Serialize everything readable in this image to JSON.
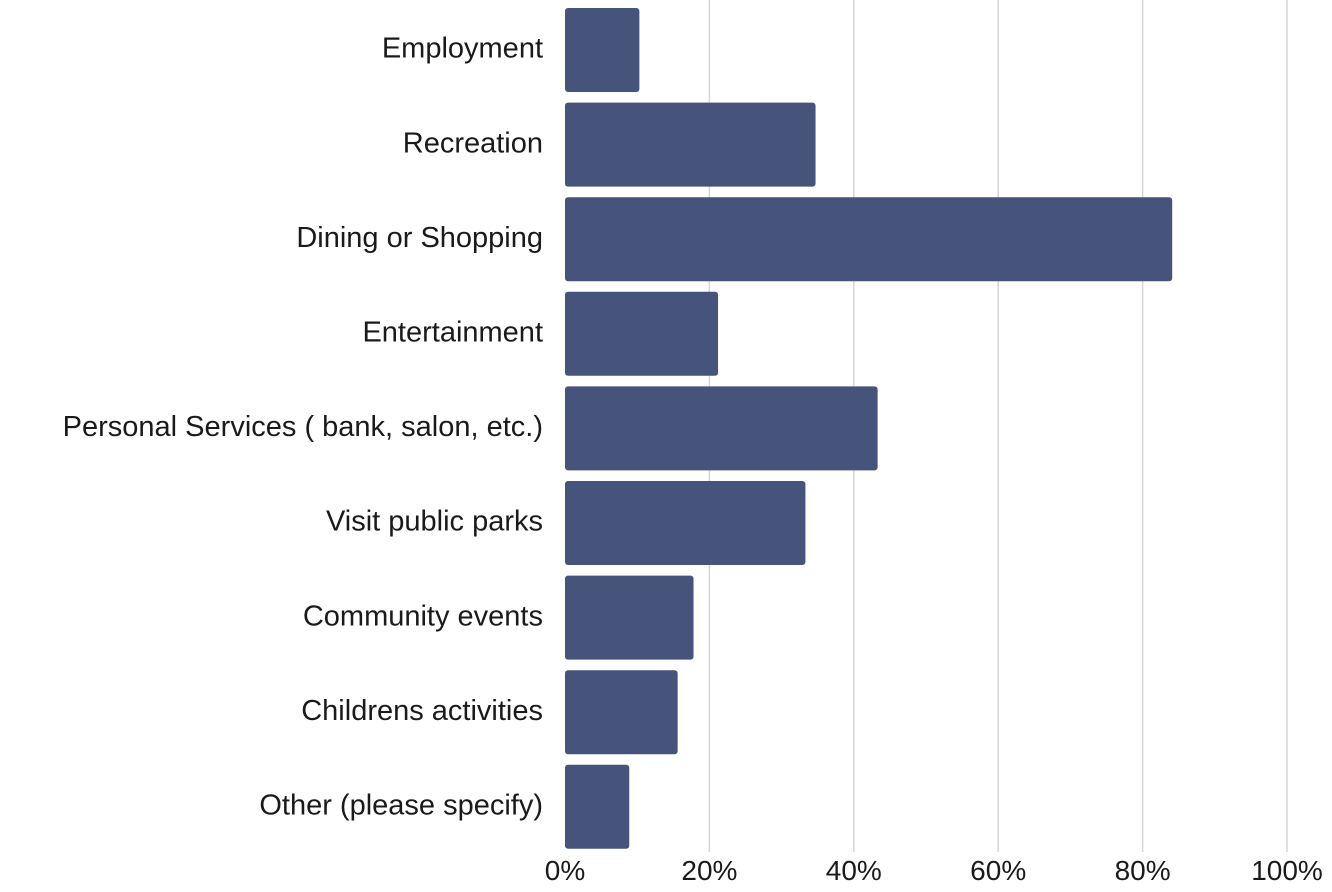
{
  "chart_data": {
    "type": "bar",
    "orientation": "horizontal",
    "title": "",
    "xlabel": "",
    "ylabel": "",
    "categories": [
      "Employment",
      "Recreation",
      "Dining or Shopping",
      "Entertainment",
      "Personal Services ( bank, salon, etc.)",
      "Visit public parks",
      "Community events",
      "Childrens activities",
      "Other (please specify)"
    ],
    "values": [
      10.3,
      34.7,
      84.1,
      21.2,
      43.3,
      33.3,
      17.8,
      15.6,
      8.9
    ],
    "unit": "%",
    "xlim": [
      0,
      100
    ],
    "x_ticks": [
      "0%",
      "20%",
      "40%",
      "60%",
      "80%",
      "100%"
    ],
    "x_tick_values": [
      0,
      20,
      40,
      60,
      80,
      100
    ],
    "grid": true,
    "legend": "none",
    "bar_color": "#46537a",
    "grid_color": "#d6d6d6"
  }
}
